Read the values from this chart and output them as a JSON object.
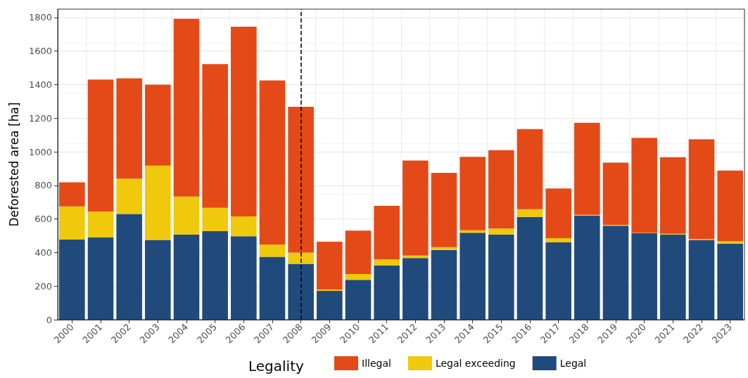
{
  "chart_data": {
    "type": "bar",
    "stacked": true,
    "categories": [
      "2000",
      "2001",
      "2002",
      "2003",
      "2004",
      "2005",
      "2006",
      "2007",
      "2008",
      "2009",
      "2010",
      "2011",
      "2012",
      "2013",
      "2014",
      "2015",
      "2016",
      "2017",
      "2018",
      "2019",
      "2020",
      "2021",
      "2022",
      "2023"
    ],
    "series": [
      {
        "name": "Legal",
        "color": "#214a7c",
        "values": [
          478,
          490,
          630,
          475,
          508,
          527,
          497,
          375,
          333,
          172,
          238,
          323,
          367,
          415,
          518,
          508,
          612,
          460,
          620,
          560,
          515,
          507,
          475,
          452
        ]
      },
      {
        "name": "Legal exceeding",
        "color": "#f0c80c",
        "values": [
          197,
          155,
          210,
          443,
          225,
          140,
          118,
          73,
          67,
          8,
          34,
          37,
          15,
          17,
          15,
          35,
          46,
          25,
          5,
          5,
          2,
          5,
          5,
          16
        ]
      },
      {
        "name": "Illegal",
        "color": "#e34a17",
        "values": [
          143,
          785,
          598,
          482,
          1059,
          855,
          1130,
          977,
          868,
          285,
          258,
          318,
          566,
          443,
          437,
          467,
          477,
          297,
          548,
          370,
          566,
          456,
          595,
          420
        ]
      }
    ],
    "ylabel": "Deforested area [ha]",
    "legend_title": "Legality",
    "ylim": [
      0,
      1850
    ],
    "yticks": [
      0,
      200,
      400,
      600,
      800,
      1000,
      1200,
      1400,
      1600,
      1800
    ],
    "grid": true,
    "legend": "bottom",
    "ref_lines": [
      {
        "axis": "x",
        "value": "2008",
        "color": "#000000",
        "line_style": "dashed"
      }
    ]
  }
}
